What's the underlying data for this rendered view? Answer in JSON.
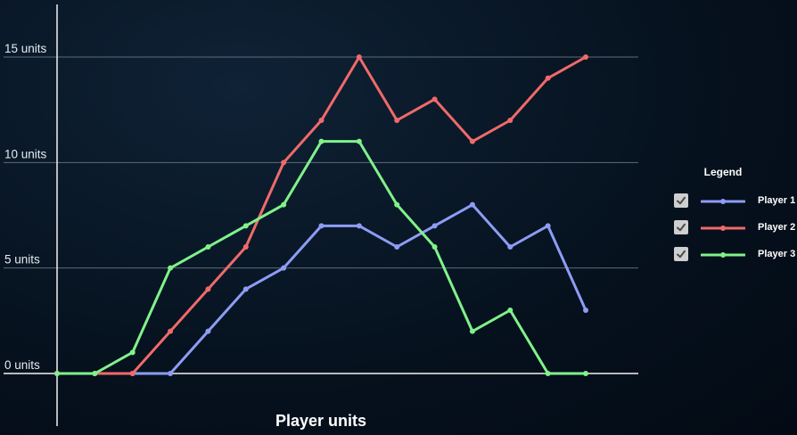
{
  "chart_data": {
    "type": "line",
    "title": "Player units",
    "xlabel": "",
    "ylabel": "",
    "x": [
      0,
      1,
      2,
      3,
      4,
      5,
      6,
      7,
      8,
      9,
      10,
      11,
      12,
      13,
      14
    ],
    "ylim": [
      -2.5,
      17.5
    ],
    "yticks": [
      0,
      5,
      10,
      15
    ],
    "ytick_labels": [
      "0 units",
      "5 units",
      "10 units",
      "15 units"
    ],
    "grid": true,
    "legend_position": "right",
    "series": [
      {
        "name": "Player 1",
        "color": "#8e9cf5",
        "values": [
          0,
          0,
          0,
          0,
          2,
          4,
          5,
          7,
          7,
          6,
          7,
          8,
          6,
          7,
          3
        ]
      },
      {
        "name": "Player 2",
        "color": "#f06a6a",
        "values": [
          0,
          0,
          0,
          2,
          4,
          6,
          10,
          12,
          15,
          12,
          13,
          11,
          12,
          14,
          15
        ]
      },
      {
        "name": "Player 3",
        "color": "#80f28a",
        "values": [
          0,
          0,
          1,
          5,
          6,
          7,
          8,
          11,
          11,
          8,
          6,
          2,
          3,
          0,
          0
        ]
      }
    ]
  },
  "legend": {
    "title": "Legend",
    "items": [
      {
        "label": "Player 1",
        "checked": true
      },
      {
        "label": "Player 2",
        "checked": true
      },
      {
        "label": "Player 3",
        "checked": true
      }
    ]
  }
}
